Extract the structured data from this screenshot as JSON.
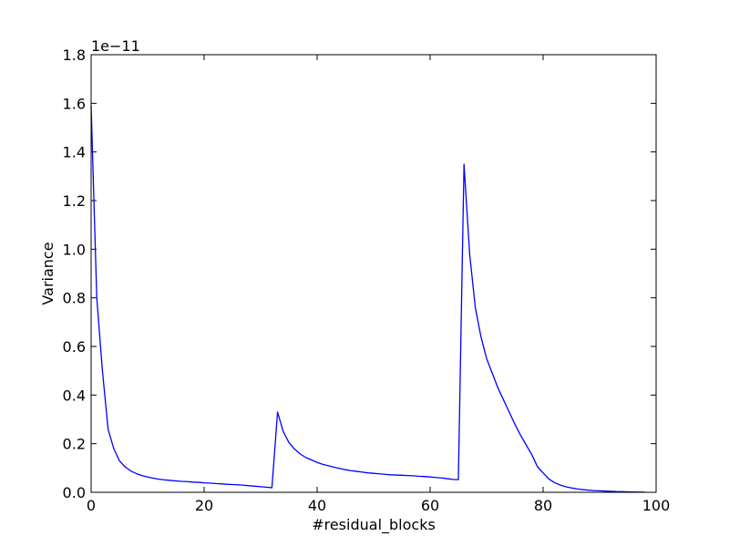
{
  "chart_data": {
    "type": "line",
    "xlabel": "#residual_blocks",
    "ylabel": "Variance",
    "y_offset_label": "1e−11",
    "xlim": [
      0,
      100
    ],
    "ylim": [
      0,
      1.8
    ],
    "xticks": [
      "0",
      "20",
      "40",
      "60",
      "80",
      "100"
    ],
    "yticks": [
      "0.0",
      "0.2",
      "0.4",
      "0.6",
      "0.8",
      "1.0",
      "1.2",
      "1.4",
      "1.6",
      "1.8"
    ],
    "grid": false,
    "line_color": "#0000ff",
    "series": [
      {
        "x": [
          0,
          1,
          2,
          3,
          4,
          5,
          6,
          7,
          8,
          9,
          10,
          11,
          12,
          13,
          14,
          15,
          16,
          17,
          18,
          19,
          20,
          21,
          22,
          23,
          24,
          25,
          26,
          27,
          28,
          29,
          30,
          31,
          32,
          33,
          34,
          35,
          36,
          37,
          38,
          39,
          40,
          41,
          42,
          43,
          44,
          45,
          46,
          47,
          48,
          49,
          50,
          51,
          52,
          53,
          54,
          55,
          56,
          57,
          58,
          59,
          60,
          61,
          62,
          63,
          64,
          65,
          66,
          67,
          68,
          69,
          70,
          71,
          72,
          73,
          74,
          75,
          76,
          77,
          78,
          79,
          80,
          81,
          82,
          83,
          84,
          85,
          86,
          87,
          88,
          89,
          90,
          91,
          92,
          93,
          94,
          95,
          96,
          97,
          98
        ],
        "y": [
          1.59,
          0.8,
          0.5,
          0.26,
          0.18,
          0.13,
          0.105,
          0.088,
          0.077,
          0.069,
          0.063,
          0.058,
          0.054,
          0.051,
          0.049,
          0.047,
          0.045,
          0.044,
          0.042,
          0.041,
          0.039,
          0.038,
          0.036,
          0.035,
          0.033,
          0.032,
          0.031,
          0.029,
          0.027,
          0.025,
          0.023,
          0.021,
          0.019,
          0.33,
          0.25,
          0.205,
          0.178,
          0.158,
          0.143,
          0.133,
          0.123,
          0.115,
          0.109,
          0.103,
          0.098,
          0.093,
          0.089,
          0.086,
          0.083,
          0.08,
          0.078,
          0.076,
          0.074,
          0.072,
          0.071,
          0.07,
          0.069,
          0.068,
          0.066,
          0.065,
          0.063,
          0.061,
          0.059,
          0.056,
          0.053,
          0.052,
          1.35,
          0.98,
          0.76,
          0.64,
          0.55,
          0.49,
          0.43,
          0.38,
          0.33,
          0.28,
          0.235,
          0.195,
          0.155,
          0.105,
          0.08,
          0.055,
          0.04,
          0.03,
          0.023,
          0.018,
          0.014,
          0.011,
          0.009,
          0.007,
          0.006,
          0.005,
          0.004,
          0.003,
          0.0025,
          0.002,
          0.0015,
          0.001,
          0.001
        ]
      }
    ]
  }
}
